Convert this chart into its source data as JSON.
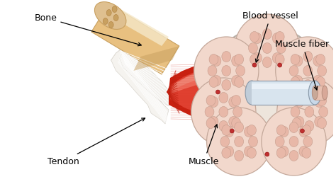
{
  "labels": {
    "bone": "Bone",
    "tendon": "Tendon",
    "muscle": "Muscle",
    "blood_vessel": "Blood vessel",
    "muscle_fiber": "Muscle fiber"
  },
  "bg_color": "#ffffff",
  "bone_color": "#e8c080",
  "bone_highlight": "#f5e8c8",
  "bone_shadow": "#c8a060",
  "tendon_color": "#f0eeea",
  "tendon_stripe": "#ffffff",
  "muscle_dark": "#c82010",
  "muscle_mid": "#e04030",
  "muscle_light": "#f07060",
  "muscle_highlight": "#f09080",
  "fiber_bg": "#f5e8e0",
  "fiber_outer_fill": "#f0d0c0",
  "fiber_outer_edge": "#c8b0a8",
  "fiber_inner_fill": "#e8b8a8",
  "fiber_inner_edge": "#c09888",
  "cross_bg": "#f0e8e0",
  "cross_edge": "#c8c0b8",
  "cylinder_fill": "#dce8f0",
  "cylinder_edge": "#a8b8c8",
  "label_fontsize": 9
}
